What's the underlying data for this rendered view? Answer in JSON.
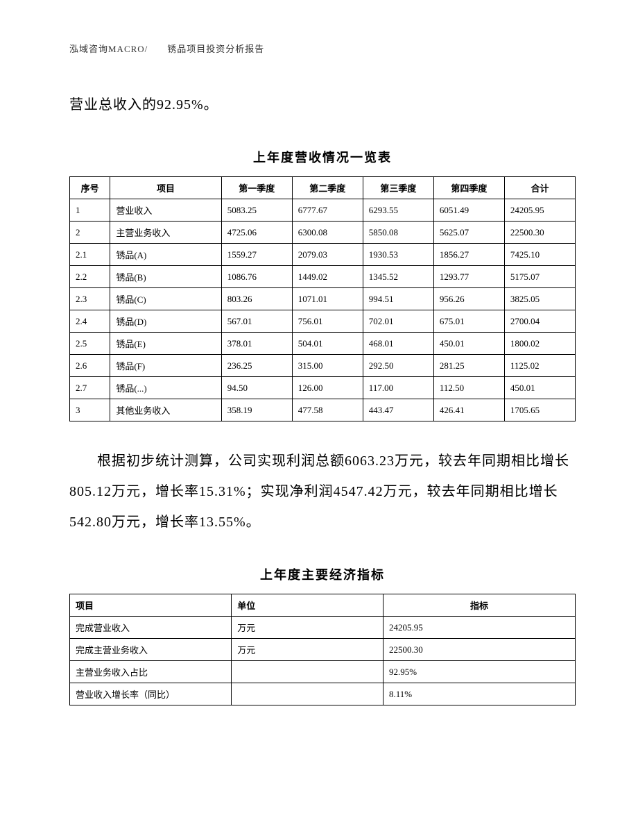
{
  "header": "泓域咨询MACRO/　　锈品项目投资分析报告",
  "intro_text": "营业总收入的92.95%。",
  "table1": {
    "title": "上年度营收情况一览表",
    "columns": [
      "序号",
      "项目",
      "第一季度",
      "第二季度",
      "第三季度",
      "第四季度",
      "合计"
    ],
    "rows": [
      [
        "1",
        "营业收入",
        "5083.25",
        "6777.67",
        "6293.55",
        "6051.49",
        "24205.95"
      ],
      [
        "2",
        "主营业务收入",
        "4725.06",
        "6300.08",
        "5850.08",
        "5625.07",
        "22500.30"
      ],
      [
        "2.1",
        "锈品(A)",
        "1559.27",
        "2079.03",
        "1930.53",
        "1856.27",
        "7425.10"
      ],
      [
        "2.2",
        "锈品(B)",
        "1086.76",
        "1449.02",
        "1345.52",
        "1293.77",
        "5175.07"
      ],
      [
        "2.3",
        "锈品(C)",
        "803.26",
        "1071.01",
        "994.51",
        "956.26",
        "3825.05"
      ],
      [
        "2.4",
        "锈品(D)",
        "567.01",
        "756.01",
        "702.01",
        "675.01",
        "2700.04"
      ],
      [
        "2.5",
        "锈品(E)",
        "378.01",
        "504.01",
        "468.01",
        "450.01",
        "1800.02"
      ],
      [
        "2.6",
        "锈品(F)",
        "236.25",
        "315.00",
        "292.50",
        "281.25",
        "1125.02"
      ],
      [
        "2.7",
        "锈品(...)",
        "94.50",
        "126.00",
        "117.00",
        "112.50",
        "450.01"
      ],
      [
        "3",
        "其他业务收入",
        "358.19",
        "477.58",
        "443.47",
        "426.41",
        "1705.65"
      ]
    ]
  },
  "middle_text": "根据初步统计测算，公司实现利润总额6063.23万元，较去年同期相比增长805.12万元，增长率15.31%；实现净利润4547.42万元，较去年同期相比增长542.80万元，增长率13.55%。",
  "table2": {
    "title": "上年度主要经济指标",
    "columns": [
      "项目",
      "单位",
      "指标"
    ],
    "rows": [
      [
        "完成营业收入",
        "万元",
        "24205.95"
      ],
      [
        "完成主营业务收入",
        "万元",
        "22500.30"
      ],
      [
        "主营业务收入占比",
        "",
        "92.95%"
      ],
      [
        "营业收入增长率（同比）",
        "",
        "8.11%"
      ]
    ]
  }
}
